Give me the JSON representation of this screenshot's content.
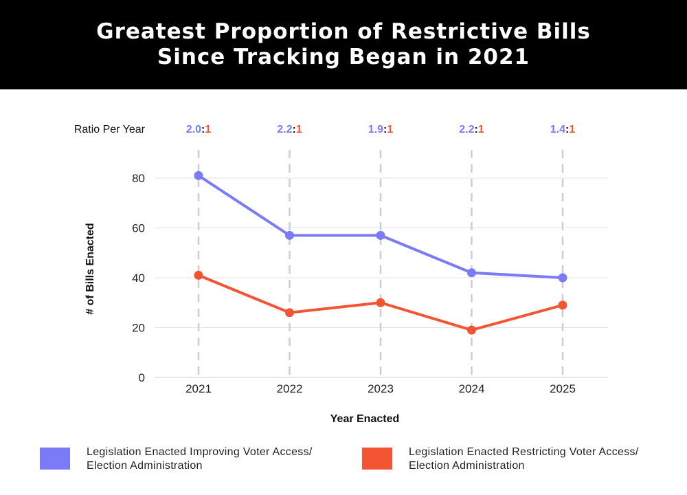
{
  "title": {
    "line1": "Greatest Proportion of Restrictive Bills",
    "line2": "Since Tracking Began in 2021"
  },
  "colors": {
    "access": "#7b7bf7",
    "restricting": "#f35533",
    "header_bg": "#000000"
  },
  "chart_data": {
    "type": "line",
    "title": "Greatest Proportion of Restrictive Bills Since Tracking Began in 2021",
    "xlabel": "Year Enacted",
    "ylabel": "# of Bills Enacted",
    "categories": [
      "2021",
      "2022",
      "2023",
      "2024",
      "2025"
    ],
    "ylim": [
      0,
      90
    ],
    "yticks": [
      0,
      20,
      40,
      60,
      80
    ],
    "grid": true,
    "series": [
      {
        "name": "Legislation Enacted Improving Voter Access/ Election Administration",
        "values": [
          81,
          57,
          57,
          42,
          40
        ]
      },
      {
        "name": "Legislation Enacted Restricting Voter Access/ Election Administration",
        "values": [
          41,
          26,
          30,
          19,
          29
        ]
      }
    ],
    "ratio_label": "Ratio Per Year",
    "ratios": [
      {
        "left": "2.0",
        "right": "1"
      },
      {
        "left": "2.2",
        "right": "1"
      },
      {
        "left": "1.9",
        "right": "1"
      },
      {
        "left": "2.2",
        "right": "1"
      },
      {
        "left": "1.4",
        "right": "1"
      }
    ]
  },
  "legend": [
    {
      "line1": "Legislation Enacted Improving Voter Access/",
      "line2": "Election Administration"
    },
    {
      "line1": "Legislation Enacted Restricting Voter Access/",
      "line2": "Election Administration"
    }
  ]
}
